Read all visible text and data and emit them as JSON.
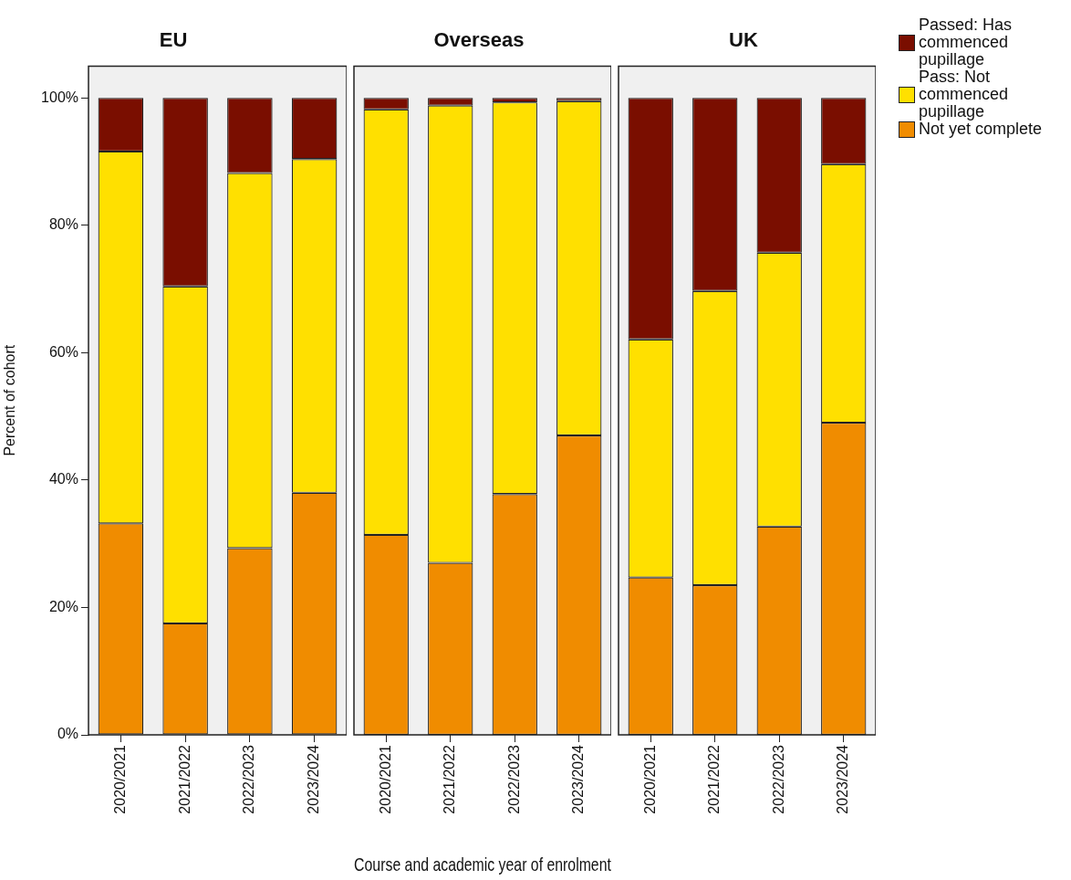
{
  "chart_data": [
    {
      "type": "bar",
      "title": "EU",
      "ylabel": "Percent of cohort",
      "stacked": true,
      "categories": [
        "2020/2021",
        "2021/2022",
        "2022/2023",
        "2023/2024"
      ],
      "ylim": [
        0,
        105
      ],
      "yticks": [
        {
          "value": 0,
          "label": "0%"
        },
        {
          "value": 20,
          "label": "20%"
        },
        {
          "value": 40,
          "label": "40%"
        },
        {
          "value": 60,
          "label": "60%"
        },
        {
          "value": 80,
          "label": "80%"
        },
        {
          "value": 100,
          "label": "100%"
        }
      ],
      "grid": false,
      "series": [
        {
          "color": "#f08c00",
          "values": [
            33.2,
            17.5,
            29.3,
            38.0
          ]
        },
        {
          "color": "#ffe000",
          "values": [
            58.4,
            52.9,
            58.9,
            52.4
          ]
        },
        {
          "color": "#7a0e00",
          "values": [
            8.4,
            29.6,
            11.8,
            9.6
          ]
        }
      ]
    },
    {
      "type": "bar",
      "title": "Overseas",
      "xlabel": "Course and academic year of enrolment",
      "stacked": true,
      "categories": [
        "2020/2021",
        "2021/2022",
        "2022/2023",
        "2023/2024"
      ],
      "ylim": [
        0,
        105
      ],
      "grid": false,
      "tick_labels": "x",
      "series": [
        {
          "color": "#f08c00",
          "values": [
            31.4,
            27.0,
            37.8,
            47.0
          ]
        },
        {
          "color": "#ffe000",
          "values": [
            66.8,
            71.8,
            61.5,
            52.5
          ]
        },
        {
          "color": "#7a0e00",
          "values": [
            1.8,
            1.2,
            0.7,
            0.5
          ]
        }
      ]
    },
    {
      "type": "bar",
      "title": "UK",
      "stacked": true,
      "categories": [
        "2020/2021",
        "2021/2022",
        "2022/2023",
        "2023/2024"
      ],
      "ylim": [
        0,
        105
      ],
      "grid": false,
      "tick_labels": "x",
      "legend": "right",
      "series": [
        {
          "name": "Not yet complete",
          "color": "#f08c00",
          "values": [
            24.7,
            23.5,
            32.7,
            49.0
          ]
        },
        {
          "name": "Pass: Not commenced pupillage",
          "color": "#ffe000",
          "values": [
            37.4,
            46.2,
            43.0,
            40.6
          ]
        },
        {
          "name": "Passed: Has commenced pupillage",
          "color": "#7a0e00",
          "values": [
            37.9,
            30.3,
            24.3,
            10.4
          ]
        }
      ]
    }
  ]
}
